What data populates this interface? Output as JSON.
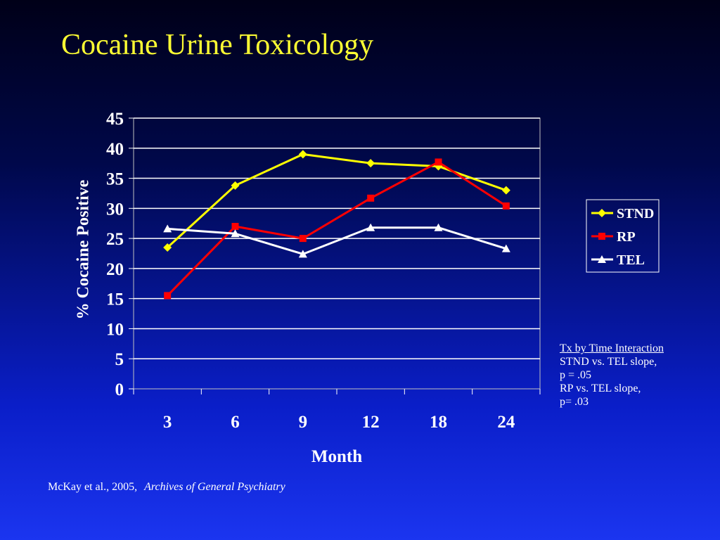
{
  "slide": {
    "title": "Cocaine Urine Toxicology",
    "note": [
      "Tx by Time Interaction",
      "STND vs. TEL slope,",
      "p = .05",
      "RP vs. TEL slope,",
      "p= .03"
    ],
    "citation": {
      "authors": "McKay et al., 2005,",
      "journal": "Archives of General Psychiatry"
    }
  },
  "chart_data": {
    "type": "line",
    "title": "",
    "xlabel": "Month",
    "ylabel": "% Cocaine Positive",
    "categories": [
      "3",
      "6",
      "9",
      "12",
      "18",
      "24"
    ],
    "ylim": [
      0,
      45
    ],
    "yticks": [
      "0",
      "5",
      "10",
      "15",
      "20",
      "25",
      "30",
      "35",
      "40",
      "45"
    ],
    "grid": true,
    "legend_position": "right",
    "series": [
      {
        "name": "STND",
        "values": [
          23.5,
          33.8,
          39.0,
          37.5,
          37.0,
          33.0
        ],
        "color": "#ffff00",
        "marker": "diamond"
      },
      {
        "name": "RP",
        "values": [
          15.5,
          27.0,
          25.0,
          31.7,
          37.7,
          30.4
        ],
        "color": "#ff0000",
        "marker": "square"
      },
      {
        "name": "TEL",
        "values": [
          26.6,
          25.8,
          22.4,
          26.8,
          26.8,
          23.3
        ],
        "color": "#ffffff",
        "marker": "triangle"
      }
    ],
    "colors": {
      "plot_border": "#c0c0c0",
      "grid": "#ffffff",
      "text": "#ffffff"
    }
  }
}
